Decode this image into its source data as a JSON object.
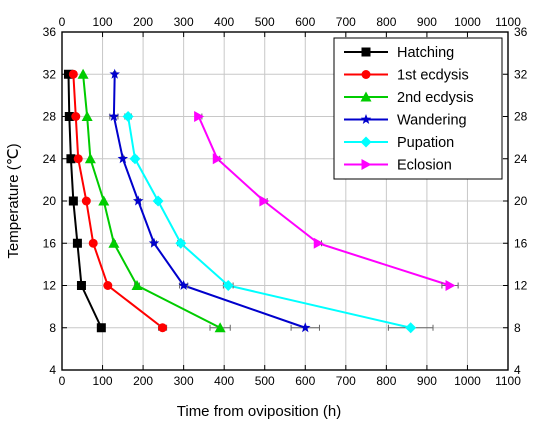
{
  "chart_data": {
    "type": "line",
    "title": "",
    "xlabel": "Time from oviposition (h)",
    "ylabel": "Temperature (℃)",
    "xlim": [
      0,
      1100
    ],
    "ylim": [
      4,
      36
    ],
    "xticks": [
      0,
      100,
      200,
      300,
      400,
      500,
      600,
      700,
      800,
      900,
      1000,
      1100
    ],
    "yticks": [
      4,
      8,
      12,
      16,
      20,
      24,
      28,
      32,
      36
    ],
    "grid": true,
    "legend_position": "top-right",
    "series": [
      {
        "name": "Hatching",
        "color": "#000000",
        "marker": "square",
        "points": [
          [
            97,
            8
          ],
          [
            48,
            12
          ],
          [
            38,
            16
          ],
          [
            28,
            20
          ],
          [
            22,
            24
          ],
          [
            18,
            28
          ],
          [
            16,
            32
          ]
        ],
        "xerr": [
          3,
          2,
          2,
          1,
          1,
          1,
          1
        ]
      },
      {
        "name": "1st ecdysis",
        "color": "#ff0000",
        "marker": "circle",
        "points": [
          [
            248,
            8
          ],
          [
            113,
            12
          ],
          [
            77,
            16
          ],
          [
            60,
            20
          ],
          [
            40,
            24
          ],
          [
            34,
            28
          ],
          [
            28,
            32
          ]
        ],
        "xerr": [
          10,
          4,
          3,
          2,
          2,
          1,
          1
        ]
      },
      {
        "name": "2nd ecdysis",
        "color": "#00cc00",
        "marker": "triangle-up",
        "points": [
          [
            390,
            8
          ],
          [
            185,
            12
          ],
          [
            128,
            16
          ],
          [
            103,
            20
          ],
          [
            70,
            24
          ],
          [
            62,
            28
          ],
          [
            52,
            32
          ]
        ],
        "xerr": [
          25,
          6,
          4,
          3,
          3,
          2,
          2
        ]
      },
      {
        "name": "Wandering",
        "color": "#0000cc",
        "marker": "star",
        "points": [
          [
            600,
            8
          ],
          [
            300,
            12
          ],
          [
            227,
            16
          ],
          [
            188,
            20
          ],
          [
            150,
            24
          ],
          [
            128,
            28
          ],
          [
            130,
            32
          ]
        ],
        "xerr": [
          35,
          10,
          6,
          5,
          4,
          10,
          3
        ]
      },
      {
        "name": "Pupation",
        "color": "#00ffff",
        "marker": "diamond",
        "points": [
          [
            860,
            8
          ],
          [
            410,
            12
          ],
          [
            293,
            16
          ],
          [
            237,
            20
          ],
          [
            180,
            24
          ],
          [
            163,
            28
          ]
        ],
        "xerr": [
          55,
          12,
          8,
          6,
          6,
          8
        ]
      },
      {
        "name": "Eclosion",
        "color": "#ff00ff",
        "marker": "triangle-right",
        "points": [
          [
            957,
            12
          ],
          [
            632,
            16
          ],
          [
            498,
            20
          ],
          [
            383,
            24
          ],
          [
            337,
            28
          ]
        ],
        "xerr": [
          20,
          8,
          8,
          6,
          8
        ]
      }
    ]
  }
}
